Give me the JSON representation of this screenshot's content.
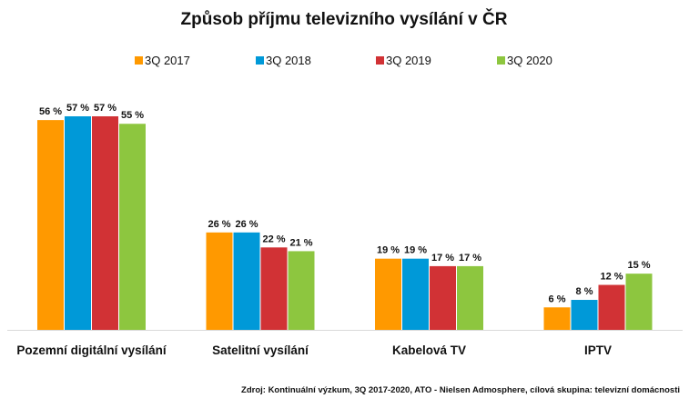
{
  "chart_data": {
    "type": "bar",
    "title": "Způsob příjmu televizního vysílání v ČR",
    "categories": [
      "Pozemní digitální vysílání",
      "Satelitní vysílání",
      "Kabelová TV",
      "IPTV"
    ],
    "series": [
      {
        "name": "3Q 2017",
        "color": "#ff9900",
        "values": [
          56,
          26,
          19,
          6
        ]
      },
      {
        "name": "3Q 2018",
        "color": "#0099d8",
        "values": [
          57,
          26,
          19,
          8
        ]
      },
      {
        "name": "3Q 2019",
        "color": "#d13235",
        "values": [
          57,
          22,
          17,
          12
        ]
      },
      {
        "name": "3Q 2020",
        "color": "#8dc63f",
        "values": [
          55,
          21,
          17,
          15
        ]
      }
    ],
    "value_suffix": " %",
    "ylim": [
      0,
      57
    ],
    "legend_position": "top",
    "grid": false,
    "source": "Zdroj: Kontinuální výzkum, 3Q 2017-2020, ATO - Nielsen Admosphere, cílová skupina: televizní domácnosti"
  }
}
